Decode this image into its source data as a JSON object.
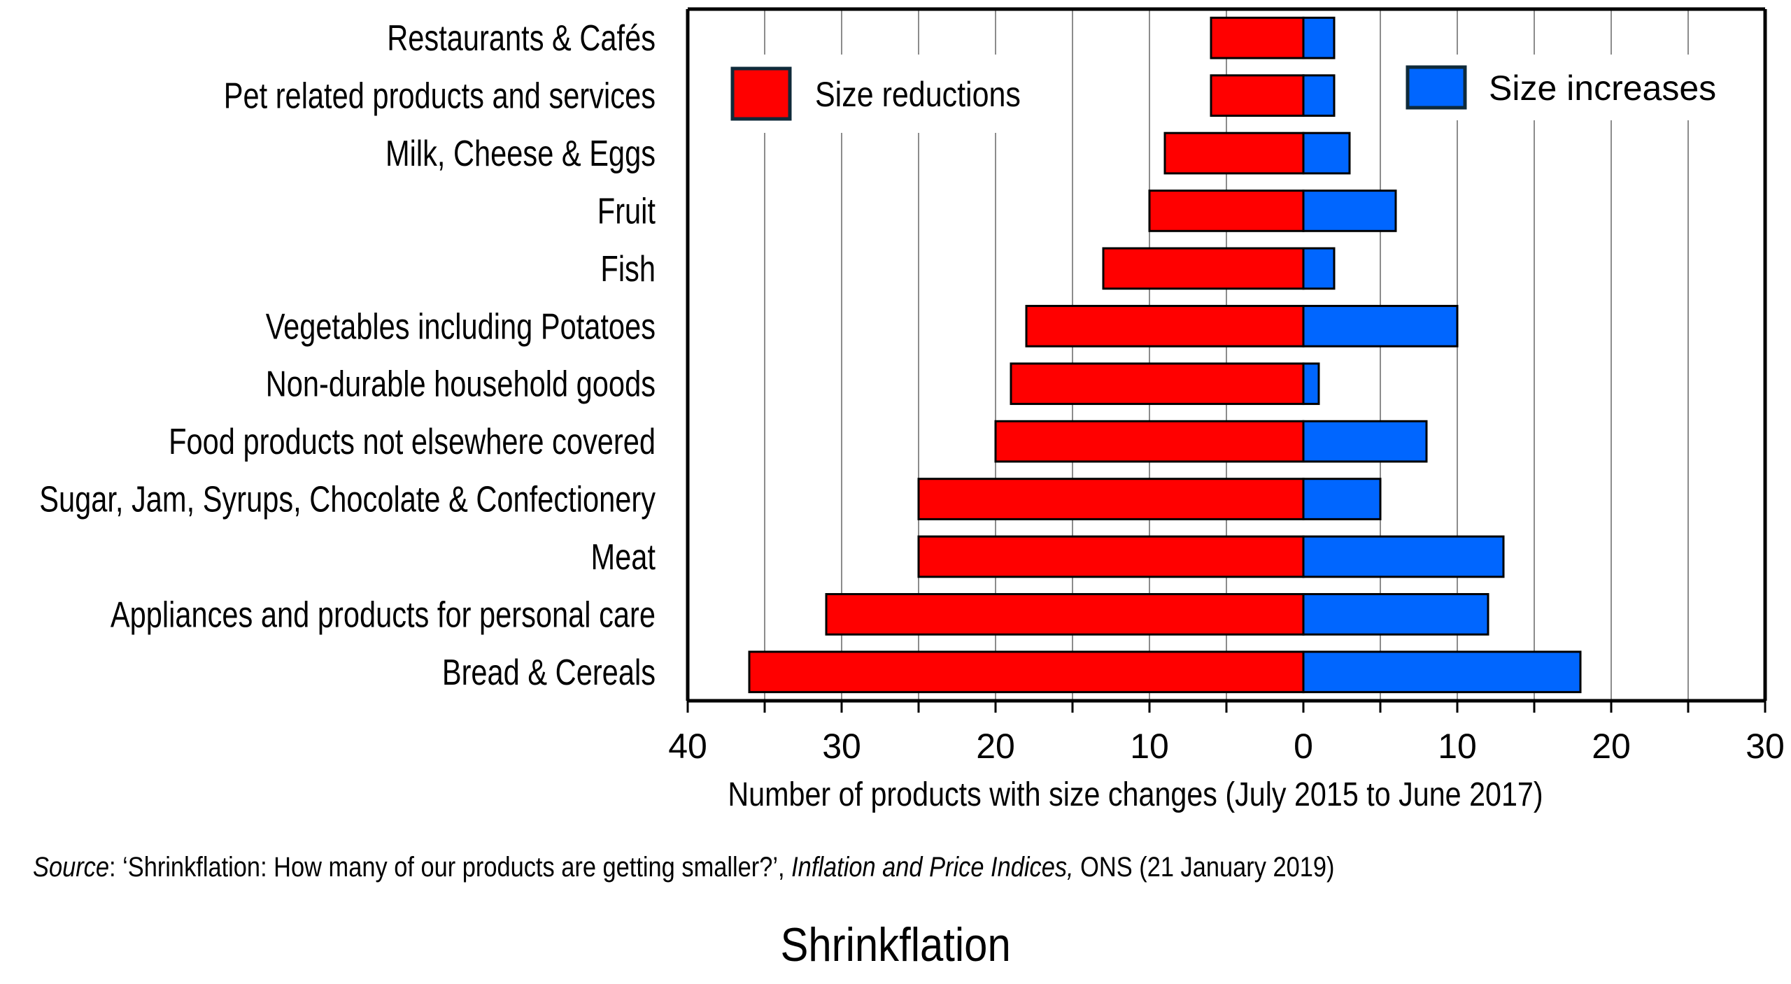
{
  "page": {
    "title": "Shrinkflation",
    "source": {
      "prefix_italic": "Source",
      "text1": ":  ‘Shrinkflation: How many of our products are getting smaller?’,  ",
      "italic2": "Inflation and Price Indices,",
      "text2": " ONS (21 January 2019)"
    }
  },
  "colors": {
    "reductions": "#ff0000",
    "increases": "#0066ff",
    "grid": "#8c8c8c",
    "outline": "#000000",
    "legend_outline": "#0f2a3a"
  },
  "chart_data": {
    "type": "bar",
    "orientation": "horizontal",
    "layout": "diverging",
    "title": "Shrinkflation",
    "xlabel": "Number of products with size changes (July 2015 to June 2017)",
    "ylabel": "",
    "xlim": [
      -40,
      30
    ],
    "x_ticks": [
      -40,
      -30,
      -20,
      -10,
      0,
      10,
      20,
      30
    ],
    "x_tick_labels": [
      "40",
      "30",
      "20",
      "10",
      "0",
      "10",
      "20",
      "30"
    ],
    "minor_grid_step": 5,
    "grid": true,
    "legend": [
      {
        "name": "Size reductions",
        "position": "top-left"
      },
      {
        "name": "Size increases",
        "position": "top-right"
      }
    ],
    "categories": [
      "Restaurants & Cafés",
      "Pet related products and services",
      "Milk, Cheese & Eggs",
      "Fruit",
      "Fish",
      "Vegetables including Potatoes",
      "Non-durable household goods",
      "Food products not elsewhere covered",
      "Sugar, Jam, Syrups, Chocolate & Confectionery",
      "Meat",
      "Appliances and products for personal care",
      "Bread & Cereals"
    ],
    "series": [
      {
        "name": "Size reductions",
        "direction": "left",
        "values": [
          6,
          6,
          9,
          10,
          13,
          18,
          19,
          20,
          25,
          25,
          31,
          36
        ]
      },
      {
        "name": "Size increases",
        "direction": "right",
        "values": [
          2,
          2,
          3,
          6,
          2,
          10,
          1,
          8,
          5,
          13,
          12,
          18
        ]
      }
    ],
    "source": "Source: ‘Shrinkflation: How many of our products are getting smaller?’, Inflation and Price Indices, ONS (21 January 2019)"
  }
}
